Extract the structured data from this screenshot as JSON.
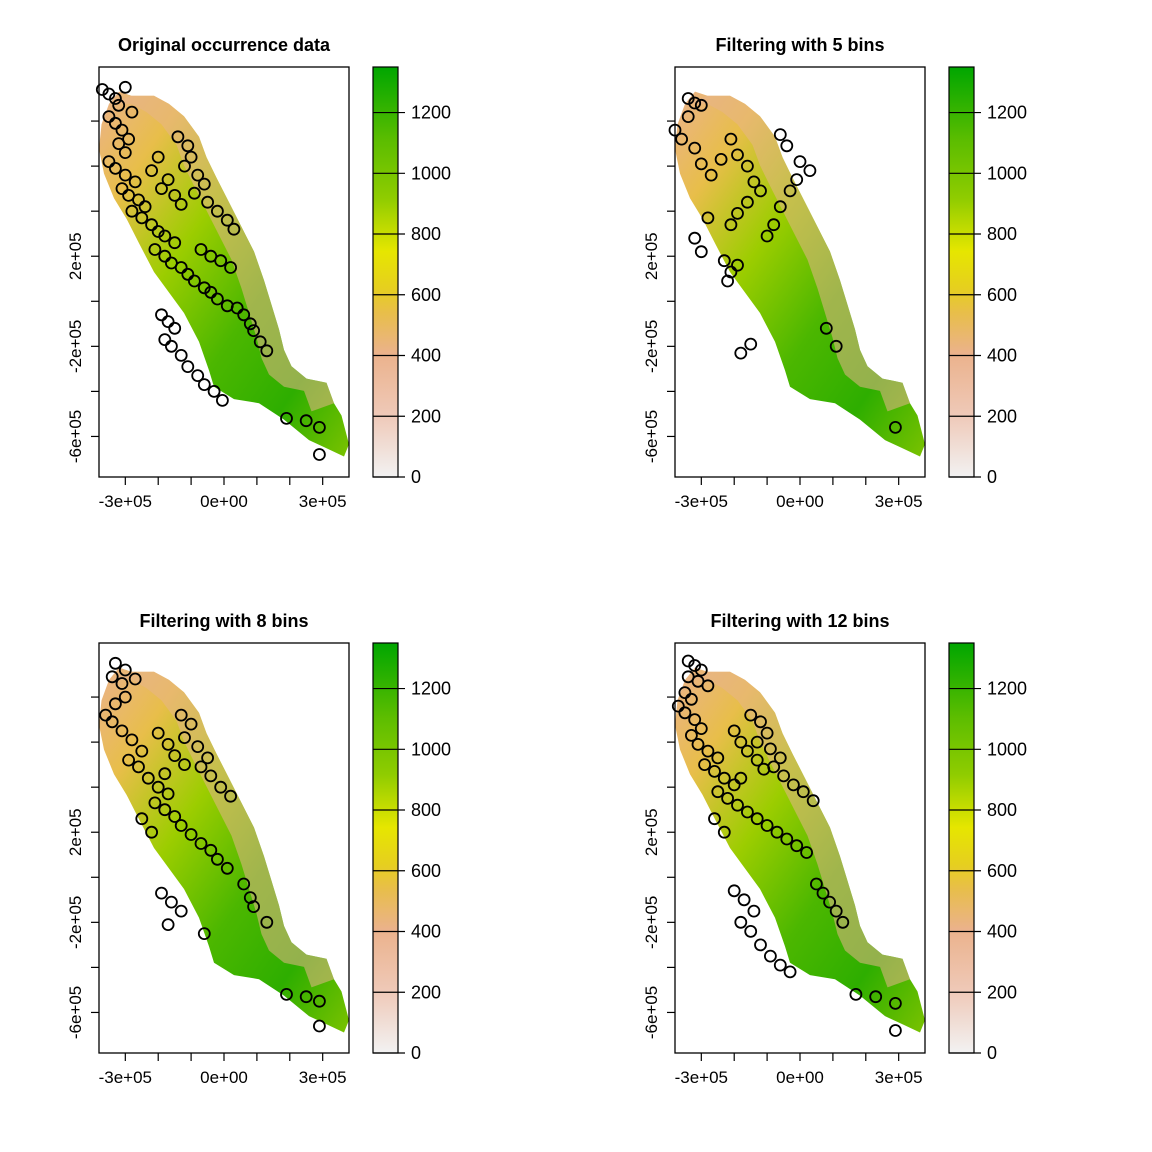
{
  "figure": {
    "panels": [
      {
        "id": "original",
        "title": "Original occurrence data"
      },
      {
        "id": "bins5",
        "title": "Filtering with 5 bins"
      },
      {
        "id": "bins8",
        "title": "Filtering with 8 bins"
      },
      {
        "id": "bins12",
        "title": "Filtering with 12 bins"
      }
    ],
    "x_ticks": [
      "-3e+05",
      "0e+00",
      "3e+05"
    ],
    "y_ticks": [
      "2e+05",
      "-2e+05",
      "-6e+05"
    ],
    "legend_ticks": [
      "0",
      "200",
      "400",
      "600",
      "800",
      "1000",
      "1200"
    ],
    "colors": {
      "low": "#f2f2f2",
      "mid_low": "#ebb28c",
      "mid": "#e6cf1f",
      "high": "#7ac200",
      "max": "#00a600"
    }
  },
  "chart_data": {
    "type": "raster_map_with_points",
    "x_unit": "m",
    "y_unit": "m",
    "xlim": [
      -380000,
      380000
    ],
    "ylim": [
      -780000,
      1040000
    ],
    "legend_range": [
      0,
      1350
    ],
    "panels": [
      {
        "title": "Original occurrence data",
        "points": [
          [
            -370000,
            940000
          ],
          [
            -350000,
            920000
          ],
          [
            -330000,
            900000
          ],
          [
            -300000,
            950000
          ],
          [
            -320000,
            870000
          ],
          [
            -280000,
            840000
          ],
          [
            -350000,
            820000
          ],
          [
            -330000,
            790000
          ],
          [
            -310000,
            760000
          ],
          [
            -290000,
            720000
          ],
          [
            -320000,
            700000
          ],
          [
            -300000,
            660000
          ],
          [
            -350000,
            620000
          ],
          [
            -330000,
            590000
          ],
          [
            -300000,
            560000
          ],
          [
            -270000,
            530000
          ],
          [
            -310000,
            500000
          ],
          [
            -290000,
            470000
          ],
          [
            -260000,
            450000
          ],
          [
            -240000,
            420000
          ],
          [
            -280000,
            400000
          ],
          [
            -250000,
            370000
          ],
          [
            -220000,
            340000
          ],
          [
            -200000,
            310000
          ],
          [
            -180000,
            290000
          ],
          [
            -150000,
            260000
          ],
          [
            -210000,
            230000
          ],
          [
            -180000,
            200000
          ],
          [
            -160000,
            170000
          ],
          [
            -130000,
            150000
          ],
          [
            -110000,
            120000
          ],
          [
            -90000,
            90000
          ],
          [
            -60000,
            60000
          ],
          [
            -40000,
            40000
          ],
          [
            -20000,
            10000
          ],
          [
            10000,
            -20000
          ],
          [
            -190000,
            -60000
          ],
          [
            -170000,
            -90000
          ],
          [
            -150000,
            -120000
          ],
          [
            -180000,
            -170000
          ],
          [
            -160000,
            -200000
          ],
          [
            -130000,
            -240000
          ],
          [
            -110000,
            -290000
          ],
          [
            -80000,
            -330000
          ],
          [
            -60000,
            -370000
          ],
          [
            -30000,
            -400000
          ],
          [
            -5000,
            -440000
          ],
          [
            80000,
            -100000
          ],
          [
            90000,
            -130000
          ],
          [
            110000,
            -180000
          ],
          [
            130000,
            -220000
          ],
          [
            40000,
            -30000
          ],
          [
            60000,
            -60000
          ],
          [
            -140000,
            730000
          ],
          [
            -110000,
            690000
          ],
          [
            -100000,
            640000
          ],
          [
            -120000,
            600000
          ],
          [
            -80000,
            560000
          ],
          [
            -60000,
            520000
          ],
          [
            -90000,
            480000
          ],
          [
            -50000,
            440000
          ],
          [
            -20000,
            400000
          ],
          [
            10000,
            360000
          ],
          [
            30000,
            320000
          ],
          [
            -200000,
            640000
          ],
          [
            -220000,
            580000
          ],
          [
            -170000,
            540000
          ],
          [
            -190000,
            500000
          ],
          [
            -150000,
            470000
          ],
          [
            -130000,
            430000
          ],
          [
            190000,
            -520000
          ],
          [
            250000,
            -530000
          ],
          [
            290000,
            -560000
          ],
          [
            290000,
            -680000
          ],
          [
            -70000,
            230000
          ],
          [
            -40000,
            200000
          ],
          [
            -10000,
            180000
          ],
          [
            20000,
            150000
          ]
        ]
      },
      {
        "title": "Filtering with 5 bins",
        "points": [
          [
            -340000,
            900000
          ],
          [
            -320000,
            880000
          ],
          [
            -300000,
            870000
          ],
          [
            -340000,
            820000
          ],
          [
            -380000,
            760000
          ],
          [
            -360000,
            720000
          ],
          [
            -320000,
            680000
          ],
          [
            -300000,
            610000
          ],
          [
            -270000,
            560000
          ],
          [
            -240000,
            630000
          ],
          [
            -210000,
            720000
          ],
          [
            -190000,
            650000
          ],
          [
            -160000,
            600000
          ],
          [
            -140000,
            530000
          ],
          [
            -120000,
            490000
          ],
          [
            -160000,
            440000
          ],
          [
            -190000,
            390000
          ],
          [
            -210000,
            340000
          ],
          [
            -280000,
            370000
          ],
          [
            -320000,
            280000
          ],
          [
            -300000,
            220000
          ],
          [
            -190000,
            160000
          ],
          [
            -210000,
            130000
          ],
          [
            -220000,
            90000
          ],
          [
            -100000,
            290000
          ],
          [
            -80000,
            340000
          ],
          [
            -60000,
            420000
          ],
          [
            -30000,
            490000
          ],
          [
            -10000,
            540000
          ],
          [
            -60000,
            740000
          ],
          [
            -40000,
            690000
          ],
          [
            0,
            620000
          ],
          [
            30000,
            580000
          ],
          [
            80000,
            -120000
          ],
          [
            110000,
            -200000
          ],
          [
            -150000,
            -190000
          ],
          [
            -180000,
            -230000
          ],
          [
            290000,
            -560000
          ],
          [
            -230000,
            180000
          ]
        ]
      },
      {
        "title": "Filtering with 8 bins",
        "points": [
          [
            -330000,
            950000
          ],
          [
            -300000,
            920000
          ],
          [
            -340000,
            890000
          ],
          [
            -310000,
            860000
          ],
          [
            -270000,
            880000
          ],
          [
            -300000,
            800000
          ],
          [
            -330000,
            770000
          ],
          [
            -360000,
            720000
          ],
          [
            -340000,
            690000
          ],
          [
            -310000,
            650000
          ],
          [
            -280000,
            610000
          ],
          [
            -250000,
            560000
          ],
          [
            -290000,
            520000
          ],
          [
            -260000,
            490000
          ],
          [
            -230000,
            440000
          ],
          [
            -200000,
            400000
          ],
          [
            -170000,
            370000
          ],
          [
            -210000,
            330000
          ],
          [
            -180000,
            300000
          ],
          [
            -150000,
            270000
          ],
          [
            -130000,
            230000
          ],
          [
            -100000,
            190000
          ],
          [
            -70000,
            150000
          ],
          [
            -40000,
            120000
          ],
          [
            -20000,
            80000
          ],
          [
            10000,
            40000
          ],
          [
            -130000,
            720000
          ],
          [
            -100000,
            680000
          ],
          [
            -120000,
            620000
          ],
          [
            -80000,
            580000
          ],
          [
            -50000,
            530000
          ],
          [
            -70000,
            490000
          ],
          [
            -40000,
            450000
          ],
          [
            -10000,
            400000
          ],
          [
            20000,
            360000
          ],
          [
            -200000,
            640000
          ],
          [
            -170000,
            590000
          ],
          [
            -150000,
            540000
          ],
          [
            -120000,
            500000
          ],
          [
            -180000,
            460000
          ],
          [
            -190000,
            -70000
          ],
          [
            -160000,
            -110000
          ],
          [
            -130000,
            -150000
          ],
          [
            -170000,
            -210000
          ],
          [
            -60000,
            -250000
          ],
          [
            80000,
            -90000
          ],
          [
            90000,
            -130000
          ],
          [
            130000,
            -200000
          ],
          [
            190000,
            -520000
          ],
          [
            250000,
            -530000
          ],
          [
            290000,
            -550000
          ],
          [
            290000,
            -660000
          ],
          [
            -220000,
            200000
          ],
          [
            -250000,
            260000
          ],
          [
            60000,
            -30000
          ]
        ]
      },
      {
        "title": "Filtering with 12 bins",
        "points": [
          [
            -340000,
            960000
          ],
          [
            -320000,
            940000
          ],
          [
            -300000,
            920000
          ],
          [
            -340000,
            890000
          ],
          [
            -310000,
            870000
          ],
          [
            -280000,
            850000
          ],
          [
            -350000,
            820000
          ],
          [
            -330000,
            790000
          ],
          [
            -370000,
            760000
          ],
          [
            -350000,
            730000
          ],
          [
            -320000,
            700000
          ],
          [
            -300000,
            660000
          ],
          [
            -330000,
            630000
          ],
          [
            -310000,
            590000
          ],
          [
            -280000,
            560000
          ],
          [
            -250000,
            530000
          ],
          [
            -290000,
            500000
          ],
          [
            -260000,
            470000
          ],
          [
            -230000,
            440000
          ],
          [
            -200000,
            410000
          ],
          [
            -250000,
            380000
          ],
          [
            -220000,
            350000
          ],
          [
            -190000,
            320000
          ],
          [
            -160000,
            290000
          ],
          [
            -130000,
            260000
          ],
          [
            -100000,
            230000
          ],
          [
            -70000,
            200000
          ],
          [
            -40000,
            170000
          ],
          [
            -10000,
            140000
          ],
          [
            20000,
            110000
          ],
          [
            -150000,
            720000
          ],
          [
            -120000,
            690000
          ],
          [
            -100000,
            640000
          ],
          [
            -130000,
            600000
          ],
          [
            -90000,
            570000
          ],
          [
            -60000,
            530000
          ],
          [
            -80000,
            490000
          ],
          [
            -50000,
            450000
          ],
          [
            -20000,
            410000
          ],
          [
            10000,
            380000
          ],
          [
            40000,
            340000
          ],
          [
            -200000,
            650000
          ],
          [
            -180000,
            600000
          ],
          [
            -160000,
            560000
          ],
          [
            -130000,
            520000
          ],
          [
            -110000,
            480000
          ],
          [
            -180000,
            440000
          ],
          [
            -200000,
            -60000
          ],
          [
            -170000,
            -100000
          ],
          [
            -140000,
            -150000
          ],
          [
            -180000,
            -200000
          ],
          [
            -150000,
            -240000
          ],
          [
            -120000,
            -300000
          ],
          [
            -90000,
            -350000
          ],
          [
            -60000,
            -390000
          ],
          [
            -30000,
            -420000
          ],
          [
            90000,
            -110000
          ],
          [
            110000,
            -150000
          ],
          [
            130000,
            -200000
          ],
          [
            170000,
            -520000
          ],
          [
            230000,
            -530000
          ],
          [
            290000,
            -560000
          ],
          [
            290000,
            -680000
          ],
          [
            -230000,
            200000
          ],
          [
            -260000,
            260000
          ],
          [
            50000,
            -30000
          ],
          [
            70000,
            -70000
          ]
        ]
      }
    ]
  }
}
